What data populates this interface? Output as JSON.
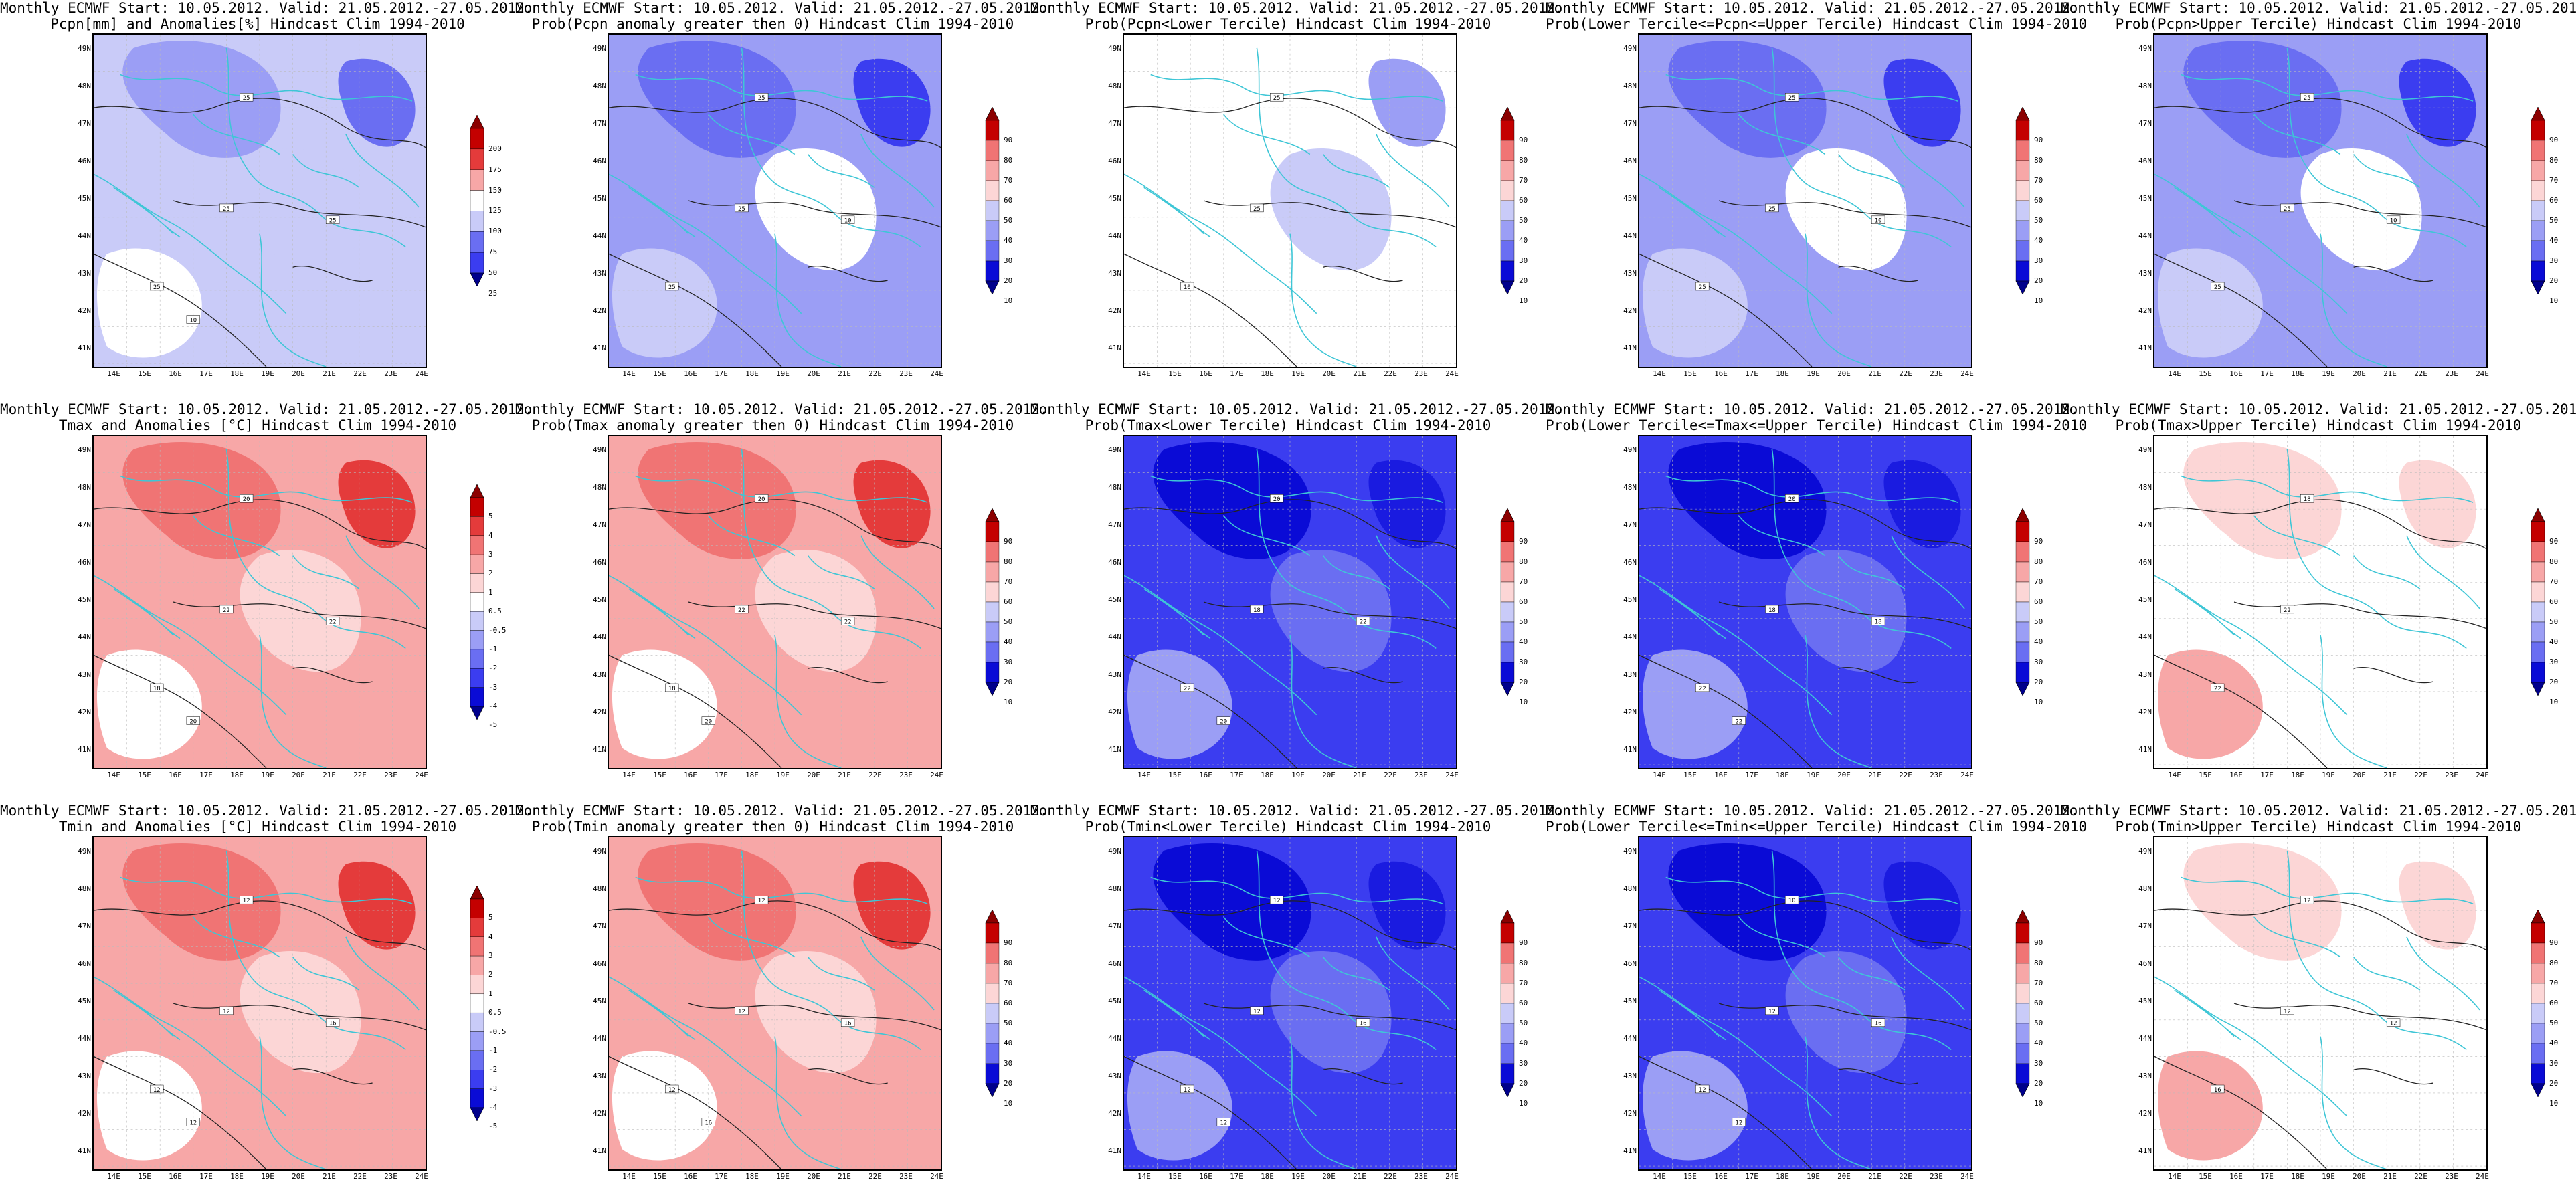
{
  "header_line": "Monthly ECMWF Start: 10.05.2012. Valid: 21.05.2012.-27.05.2012.",
  "lat_labels": [
    "49N",
    "48N",
    "47N",
    "46N",
    "45N",
    "44N",
    "43N",
    "42N",
    "41N"
  ],
  "lon_labels": [
    "14E",
    "15E",
    "16E",
    "17E",
    "18E",
    "19E",
    "20E",
    "21E",
    "22E",
    "23E",
    "24E"
  ],
  "colors": {
    "coast": "#3ec6d6",
    "contour": "#222222",
    "blue_scale": [
      "#0a0bd6",
      "#3b3df0",
      "#6a6ef2",
      "#9b9ef5",
      "#c9cbf8",
      "#ffffff"
    ],
    "red_scale": [
      "#ffffff",
      "#fcd6d6",
      "#f7a7a7",
      "#f07474",
      "#e43b3b",
      "#c40000"
    ]
  },
  "legend_anom_pcpn": [
    "200",
    "175",
    "150",
    "125",
    "100",
    "75",
    "50",
    "25"
  ],
  "legend_anom_temp": [
    "5",
    "4",
    "3",
    "2",
    "1",
    "0.5",
    "-0.5",
    "-1",
    "-2",
    "-3",
    "-4",
    "-5"
  ],
  "legend_prob": [
    "90",
    "80",
    "70",
    "60",
    "50",
    "40",
    "30",
    "20",
    "10"
  ],
  "panels": [
    {
      "sub": "Pcpn[mm] and Anomalies[%] Hindcast Clim 1994-2010",
      "scheme": "pcpn_anom",
      "legend": "pcpn",
      "contours": [
        "25",
        "25",
        "25",
        "25",
        "10"
      ]
    },
    {
      "sub": "Prob(Pcpn anomaly greater then 0) Hindcast Clim 1994-2010",
      "scheme": "blue_mid",
      "legend": "prob",
      "contours": [
        "25",
        "25",
        "25",
        "10"
      ]
    },
    {
      "sub": "Prob(Pcpn<Lower Tercile) Hindcast Clim 1994-2010",
      "scheme": "white_blue",
      "legend": "prob",
      "contours": [
        "25",
        "25",
        "10"
      ]
    },
    {
      "sub": "Prob(Lower Tercile<=Pcpn<=Upper Tercile) Hindcast Clim 1994-2010",
      "scheme": "blue_mid",
      "legend": "prob",
      "contours": [
        "25",
        "25",
        "25",
        "10"
      ]
    },
    {
      "sub": "Prob(Pcpn>Upper Tercile) Hindcast Clim 1994-2010",
      "scheme": "blue_mid",
      "legend": "prob",
      "contours": [
        "25",
        "25",
        "25",
        "10"
      ]
    },
    {
      "sub": "Tmax and Anomalies [°C] Hindcast Clim 1994-2010",
      "scheme": "red_mid",
      "legend": "temp",
      "contours": [
        "20",
        "22",
        "18",
        "22",
        "20"
      ]
    },
    {
      "sub": "Prob(Tmax anomaly greater then 0) Hindcast Clim 1994-2010",
      "scheme": "red_mid",
      "legend": "prob",
      "contours": [
        "20",
        "22",
        "18",
        "22",
        "20"
      ]
    },
    {
      "sub": "Prob(Tmax<Lower Tercile) Hindcast Clim 1994-2010",
      "scheme": "deep_blue",
      "legend": "prob",
      "contours": [
        "20",
        "18",
        "22",
        "22",
        "20"
      ]
    },
    {
      "sub": "Prob(Lower Tercile<=Tmax<=Upper Tercile) Hindcast Clim 1994-2010",
      "scheme": "deep_blue",
      "legend": "prob",
      "contours": [
        "20",
        "18",
        "22",
        "18",
        "22"
      ]
    },
    {
      "sub": "Prob(Tmax>Upper Tercile) Hindcast Clim 1994-2010",
      "scheme": "white_red",
      "legend": "prob",
      "contours": [
        "18",
        "22",
        "22"
      ]
    },
    {
      "sub": "Tmin and Anomalies [°C] Hindcast Clim 1994-2010",
      "scheme": "red_mid",
      "legend": "temp",
      "contours": [
        "12",
        "12",
        "12",
        "16",
        "12"
      ]
    },
    {
      "sub": "Prob(Tmin anomaly greater then 0) Hindcast Clim 1994-2010",
      "scheme": "red_mid",
      "legend": "prob",
      "contours": [
        "12",
        "12",
        "12",
        "16",
        "16"
      ]
    },
    {
      "sub": "Prob(Tmin<Lower Tercile) Hindcast Clim 1994-2010",
      "scheme": "deep_blue",
      "legend": "prob",
      "contours": [
        "12",
        "12",
        "12",
        "16",
        "12"
      ]
    },
    {
      "sub": "Prob(Lower Tercile<=Tmin<=Upper Tercile) Hindcast Clim 1994-2010",
      "scheme": "deep_blue",
      "legend": "prob",
      "contours": [
        "10",
        "12",
        "12",
        "16",
        "12"
      ]
    },
    {
      "sub": "Prob(Tmin>Upper Tercile) Hindcast Clim 1994-2010",
      "scheme": "white_red",
      "legend": "prob",
      "contours": [
        "12",
        "12",
        "16",
        "12"
      ]
    }
  ]
}
